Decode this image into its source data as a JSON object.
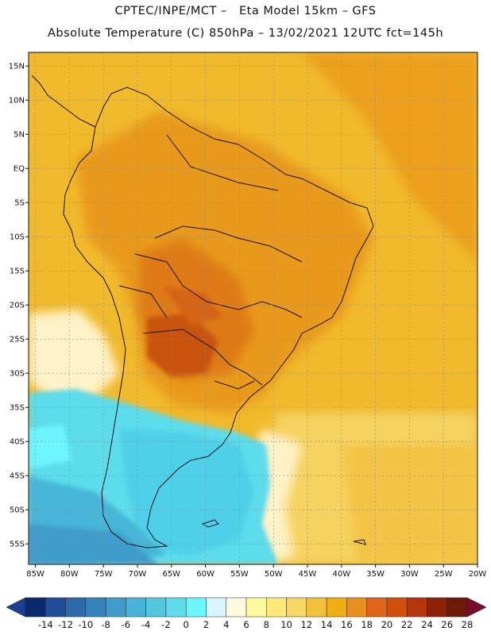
{
  "title_line1": "CPTEC/INPE/MCT –   Eta Model 15km – GFS",
  "title_line2": "Absolute Temperature (C) 850hPa – 13/02/2021 12UTC fct=145h",
  "map": {
    "lat_labels": [
      "15N",
      "10N",
      "5N",
      "EQ",
      "5S",
      "10S",
      "15S",
      "20S",
      "25S",
      "30S",
      "35S",
      "40S",
      "45S",
      "50S",
      "55S"
    ],
    "lon_labels": [
      "85W",
      "80W",
      "75W",
      "70W",
      "65W",
      "60W",
      "55W",
      "50W",
      "45W",
      "40W",
      "35W",
      "30W",
      "25W",
      "20W"
    ],
    "lat_range": [
      -58,
      17
    ],
    "lon_range": [
      -86,
      -20
    ]
  },
  "colorbar": {
    "labels": [
      "-14",
      "-12",
      "-10",
      "-8",
      "-6",
      "-4",
      "-2",
      "0",
      "2",
      "4",
      "6",
      "8",
      "10",
      "12",
      "14",
      "16",
      "18",
      "20",
      "22",
      "24",
      "26",
      "28"
    ],
    "colors": [
      "#0b2a6e",
      "#1f4e96",
      "#2c6aab",
      "#3583bb",
      "#3f9cca",
      "#4ab2d6",
      "#53c6e0",
      "#5ddcec",
      "#6df6ff",
      "#d7f6ff",
      "#fff9e0",
      "#fffaa0",
      "#ffe97a",
      "#f7d865",
      "#f3c23d",
      "#f0ae12",
      "#e8901e",
      "#e0651a",
      "#d24e0c",
      "#b5360a",
      "#8e2209",
      "#6e1a0a"
    ],
    "under_color": "#1d3f92",
    "over_color": "#7a0b30"
  }
}
